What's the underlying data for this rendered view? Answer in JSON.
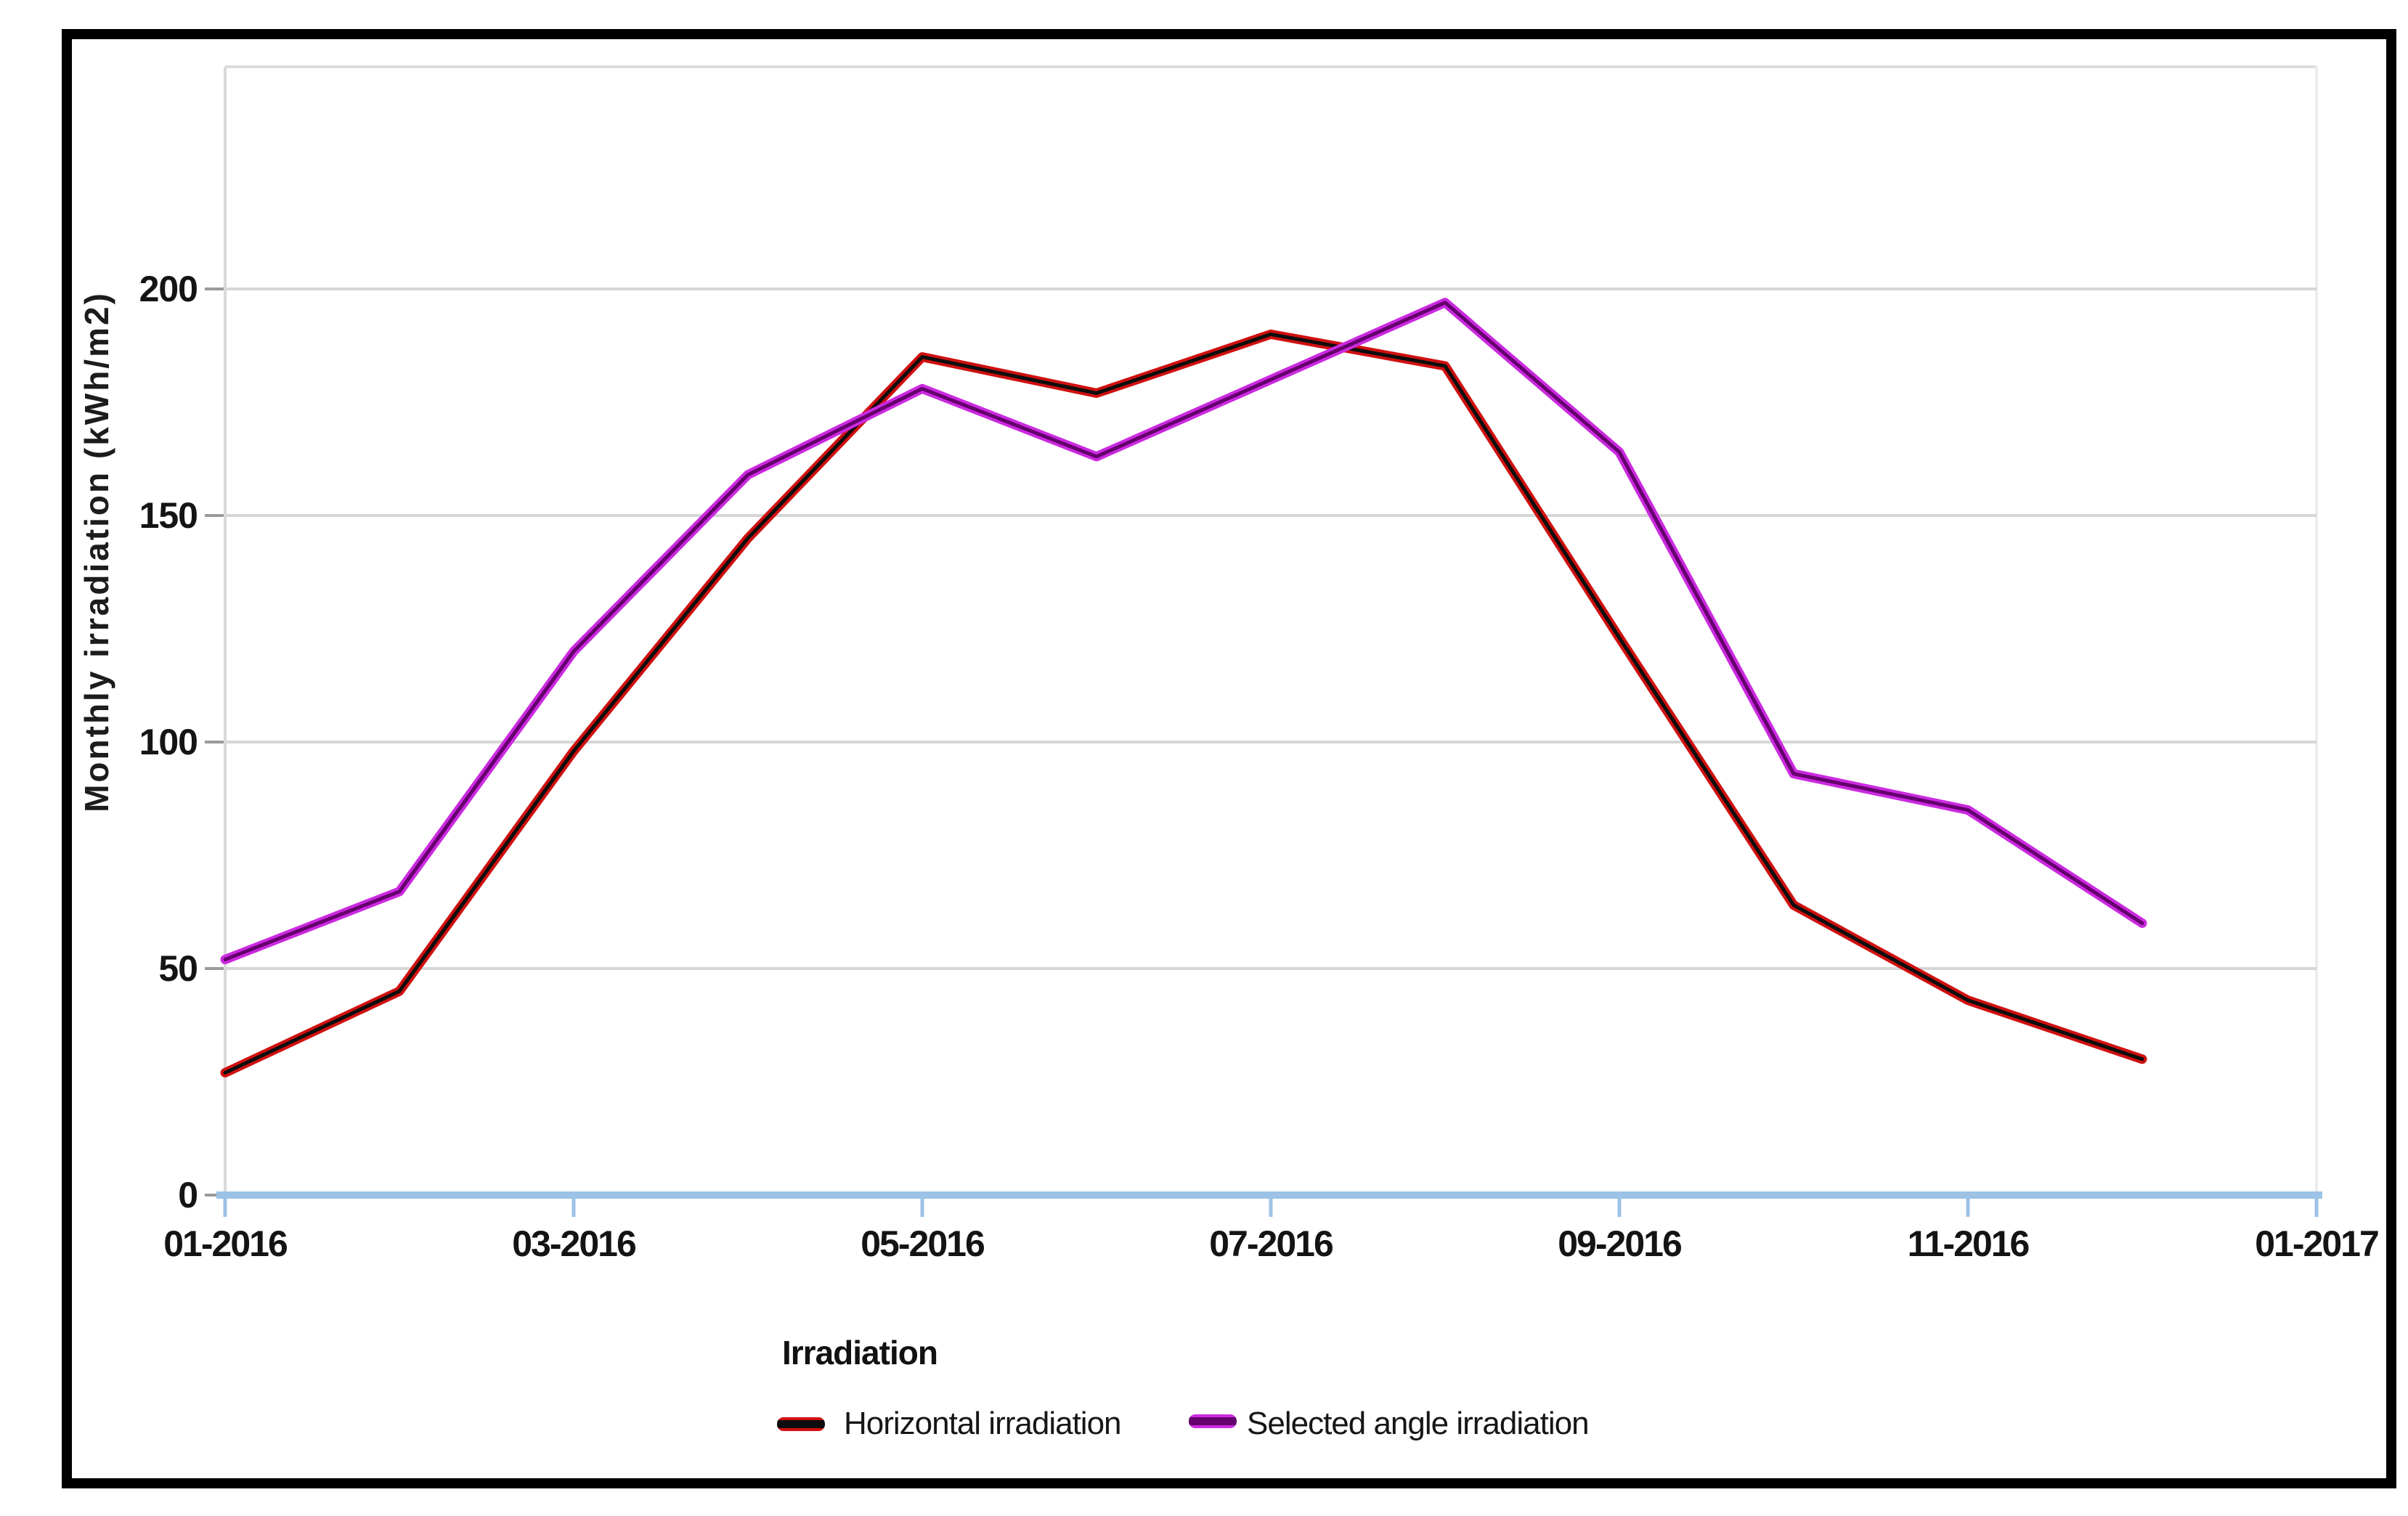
{
  "window": {
    "background": "#ffffff",
    "frame_border_color": "#000000"
  },
  "chart_data": {
    "type": "line",
    "title": "",
    "xlabel": "",
    "ylabel": "Monthly irradiation (kWh/m2)",
    "legend_title": "Irradiation",
    "legend_position": "bottom",
    "grid": true,
    "x_tick_labels": [
      "01-2016",
      "03-2016",
      "05-2016",
      "07-2016",
      "09-2016",
      "11-2016",
      "01-2017"
    ],
    "y_tick_labels": [
      "0",
      "50",
      "100",
      "150",
      "200"
    ],
    "y_ticks": [
      0,
      50,
      100,
      150,
      200
    ],
    "ylim": [
      0,
      249
    ],
    "x_categories": [
      "01-2016",
      "02-2016",
      "03-2016",
      "04-2016",
      "05-2016",
      "06-2016",
      "07-2016",
      "08-2016",
      "09-2016",
      "10-2016",
      "11-2016",
      "12-2016"
    ],
    "series": [
      {
        "name": "Horizontal irradiation",
        "halo_color": "#d01010",
        "core_color": "#0d0d0d",
        "values": [
          27,
          45,
          98,
          145,
          185,
          177,
          190,
          183,
          123,
          64,
          43,
          30
        ]
      },
      {
        "name": "Selected angle irradiation",
        "halo_color": "#cb2ae0",
        "core_color": "#66006e",
        "values": [
          52,
          67,
          120,
          159,
          178,
          163,
          180,
          197,
          164,
          93,
          85,
          60
        ]
      }
    ],
    "colors": {
      "axis_line": "#9cc2e5",
      "gridline": "#d6d6d6",
      "plot_border": "#dcdcdc",
      "y_axis_line": "#d9d9d9",
      "y_tick_mark": "#9a9a9a",
      "tick_text": "#141414"
    }
  }
}
